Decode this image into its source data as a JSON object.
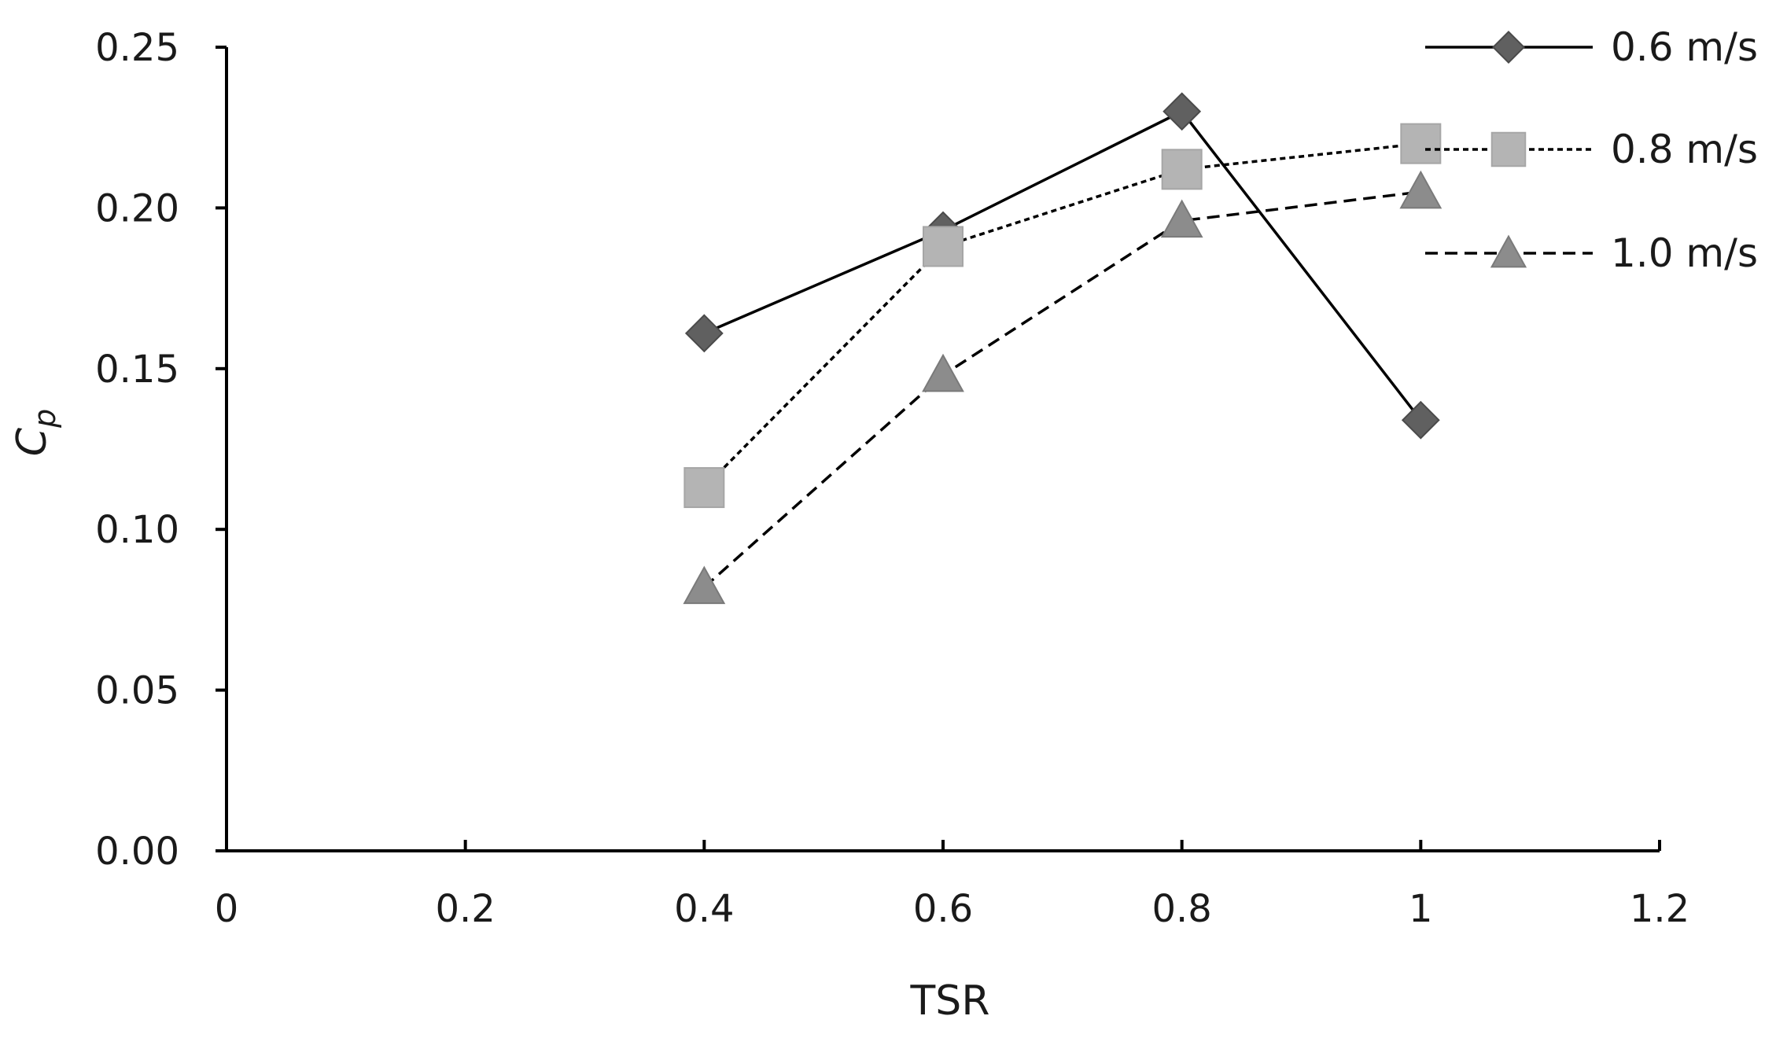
{
  "chart_data": {
    "type": "line",
    "title": "",
    "xlabel": "TSR",
    "ylabel_main": "C",
    "ylabel_sub": "p",
    "xlim": [
      0,
      1.2
    ],
    "ylim": [
      0,
      0.25
    ],
    "xticks": [
      0,
      0.2,
      0.4,
      0.6,
      0.8,
      1,
      1.2
    ],
    "xtick_labels": [
      "0",
      "0.2",
      "0.4",
      "0.6",
      "0.8",
      "1",
      "1.2"
    ],
    "yticks": [
      0,
      0.05,
      0.1,
      0.15,
      0.2,
      0.25
    ],
    "ytick_labels": [
      "0.00",
      "0.05",
      "0.10",
      "0.15",
      "0.20",
      "0.25"
    ],
    "grid": false,
    "legend_position": "top-right",
    "series": [
      {
        "name": "0.6 m/s",
        "marker": "diamond",
        "line_style": "solid",
        "marker_color": "#606060",
        "x": [
          0.4,
          0.6,
          0.8,
          1.0
        ],
        "y": [
          0.161,
          0.193,
          0.23,
          0.134
        ]
      },
      {
        "name": "0.8 m/s",
        "marker": "square",
        "line_style": "dotted",
        "marker_color": "#b4b4b4",
        "x": [
          0.4,
          0.6,
          0.8,
          1.0
        ],
        "y": [
          0.113,
          0.188,
          0.212,
          0.22
        ]
      },
      {
        "name": "1.0 m/s",
        "marker": "triangle",
        "line_style": "dashed",
        "marker_color": "#8c8c8c",
        "x": [
          0.4,
          0.6,
          0.8,
          1.0
        ],
        "y": [
          0.082,
          0.148,
          0.196,
          0.205
        ]
      }
    ]
  }
}
